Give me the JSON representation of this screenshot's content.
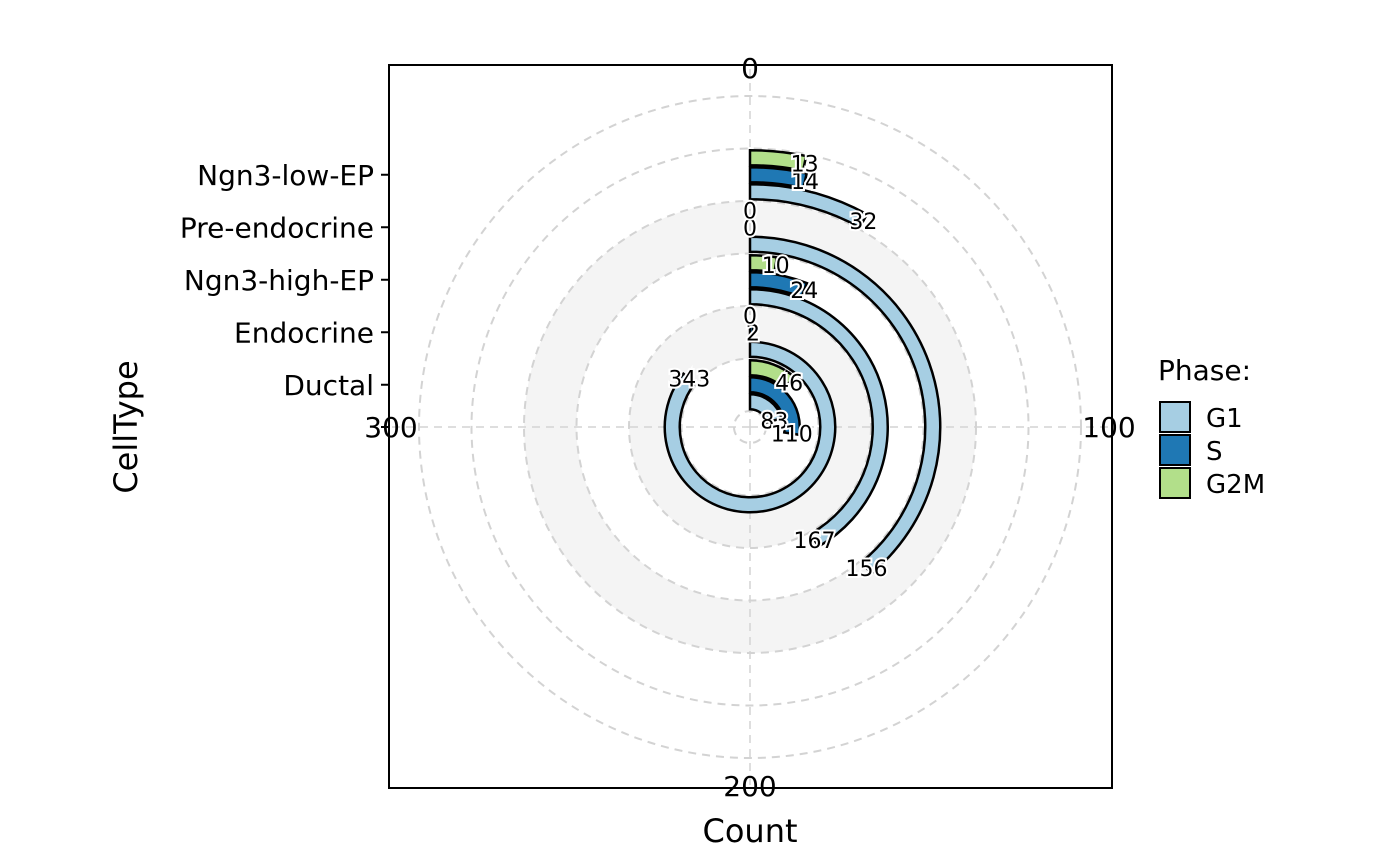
{
  "chart_data": {
    "type": "bar",
    "subtype": "radial-stacked-bar",
    "title": "",
    "xlabel": "Count",
    "ylabel": "CellType",
    "xlim": [
      0,
      400
    ],
    "x_ticks": [
      0,
      100,
      200,
      300
    ],
    "categories": [
      "Ductal",
      "Endocrine",
      "Ngn3-high-EP",
      "Pre-endocrine",
      "Ngn3-low-EP"
    ],
    "y_tick_labels": [
      "",
      "Ductal",
      "Endocrine",
      "Ngn3-high-EP",
      "Pre-endocrine",
      "Ngn3-low-EP"
    ],
    "series": [
      {
        "name": "G1",
        "color": "#A6CEE3",
        "values": [
          83,
          343,
          167,
          156,
          32
        ]
      },
      {
        "name": "S",
        "color": "#1F78B4",
        "values": [
          110,
          2,
          24,
          0,
          14
        ]
      },
      {
        "name": "G2M",
        "color": "#B2DF8A",
        "values": [
          46,
          0,
          10,
          0,
          13
        ]
      }
    ],
    "legend": {
      "title": "Phase:",
      "position": "right",
      "items": [
        "G1",
        "S",
        "G2M"
      ]
    },
    "grid": true,
    "grid_color": "#D3D3D3",
    "band_color": "#F4F4F4",
    "bar_outline_color": "#000000"
  }
}
